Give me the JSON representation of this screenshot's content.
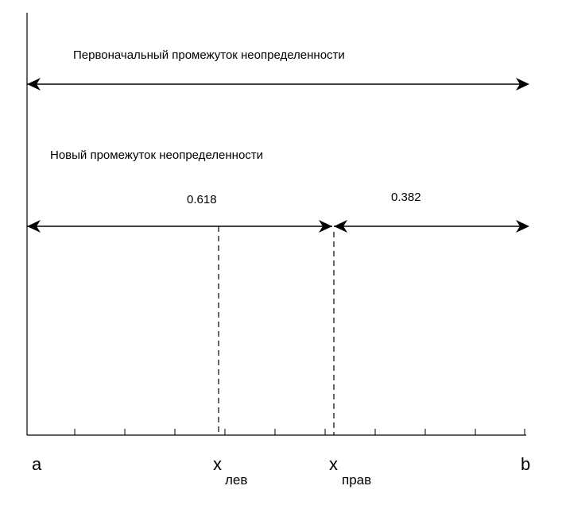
{
  "diagram": {
    "original_interval_label": "Первоначальный промежуток неопределенности",
    "new_interval_label": "Новый промежуток неопределенности",
    "left_fraction_label": "0.618",
    "right_fraction_label": "0.382",
    "axis": {
      "left_label": "a",
      "right_label": "b",
      "x_left_main": "x",
      "x_left_sub": "лев",
      "x_right_main": "x",
      "x_right_sub": "прав"
    }
  }
}
